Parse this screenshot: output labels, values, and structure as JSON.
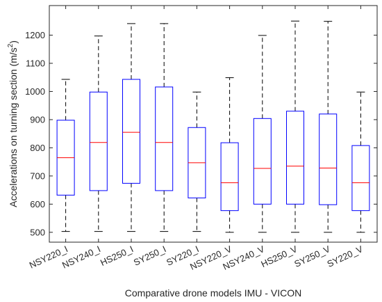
{
  "chart_data": {
    "type": "box",
    "title": "",
    "xlabel": "Comparative drone models IMU - VICON",
    "ylabel": "Accelerations on turning section (m/s",
    "ylabel_sup": "2",
    "ylabel_suffix": ")",
    "ylim": [
      465,
      1305
    ],
    "yticks": [
      500,
      600,
      700,
      800,
      900,
      1000,
      1100,
      1200
    ],
    "grid": false,
    "categories": [
      "NSY220_I",
      "NSY240_I",
      "HS250_I",
      "SY250_I",
      "SY220_I",
      "NSY220_V",
      "NSY240_V",
      "HS250_V",
      "SY250_V",
      "SY220_V"
    ],
    "boxes": [
      {
        "label": "NSY220_I",
        "whisker_low": 503,
        "q1": 632,
        "median": 765,
        "q3": 898,
        "whisker_high": 1043
      },
      {
        "label": "NSY240_I",
        "whisker_low": 503,
        "q1": 648,
        "median": 819,
        "q3": 998,
        "whisker_high": 1197
      },
      {
        "label": "HS250_I",
        "whisker_low": 503,
        "q1": 674,
        "median": 855,
        "q3": 1043,
        "whisker_high": 1241
      },
      {
        "label": "SY250_I",
        "whisker_low": 503,
        "q1": 648,
        "median": 819,
        "q3": 1016,
        "whisker_high": 1241
      },
      {
        "label": "SY220_I",
        "whisker_low": 503,
        "q1": 622,
        "median": 747,
        "q3": 872,
        "whisker_high": 998
      },
      {
        "label": "NSY220_V",
        "whisker_low": 500,
        "q1": 577,
        "median": 676,
        "q3": 818,
        "whisker_high": 1049
      },
      {
        "label": "NSY240_V",
        "whisker_low": 500,
        "q1": 600,
        "median": 727,
        "q3": 904,
        "whisker_high": 1199
      },
      {
        "label": "HS250_V",
        "whisker_low": 500,
        "q1": 600,
        "median": 735,
        "q3": 930,
        "whisker_high": 1250
      },
      {
        "label": "SY250_V",
        "whisker_low": 500,
        "q1": 598,
        "median": 728,
        "q3": 920,
        "whisker_high": 1249
      },
      {
        "label": "SY220_V",
        "whisker_low": 500,
        "q1": 577,
        "median": 676,
        "q3": 808,
        "whisker_high": 998
      }
    ],
    "colors": {
      "box": "#0000ff",
      "median": "#ff0000",
      "whisker": "#000000",
      "axis": "#262626"
    }
  }
}
